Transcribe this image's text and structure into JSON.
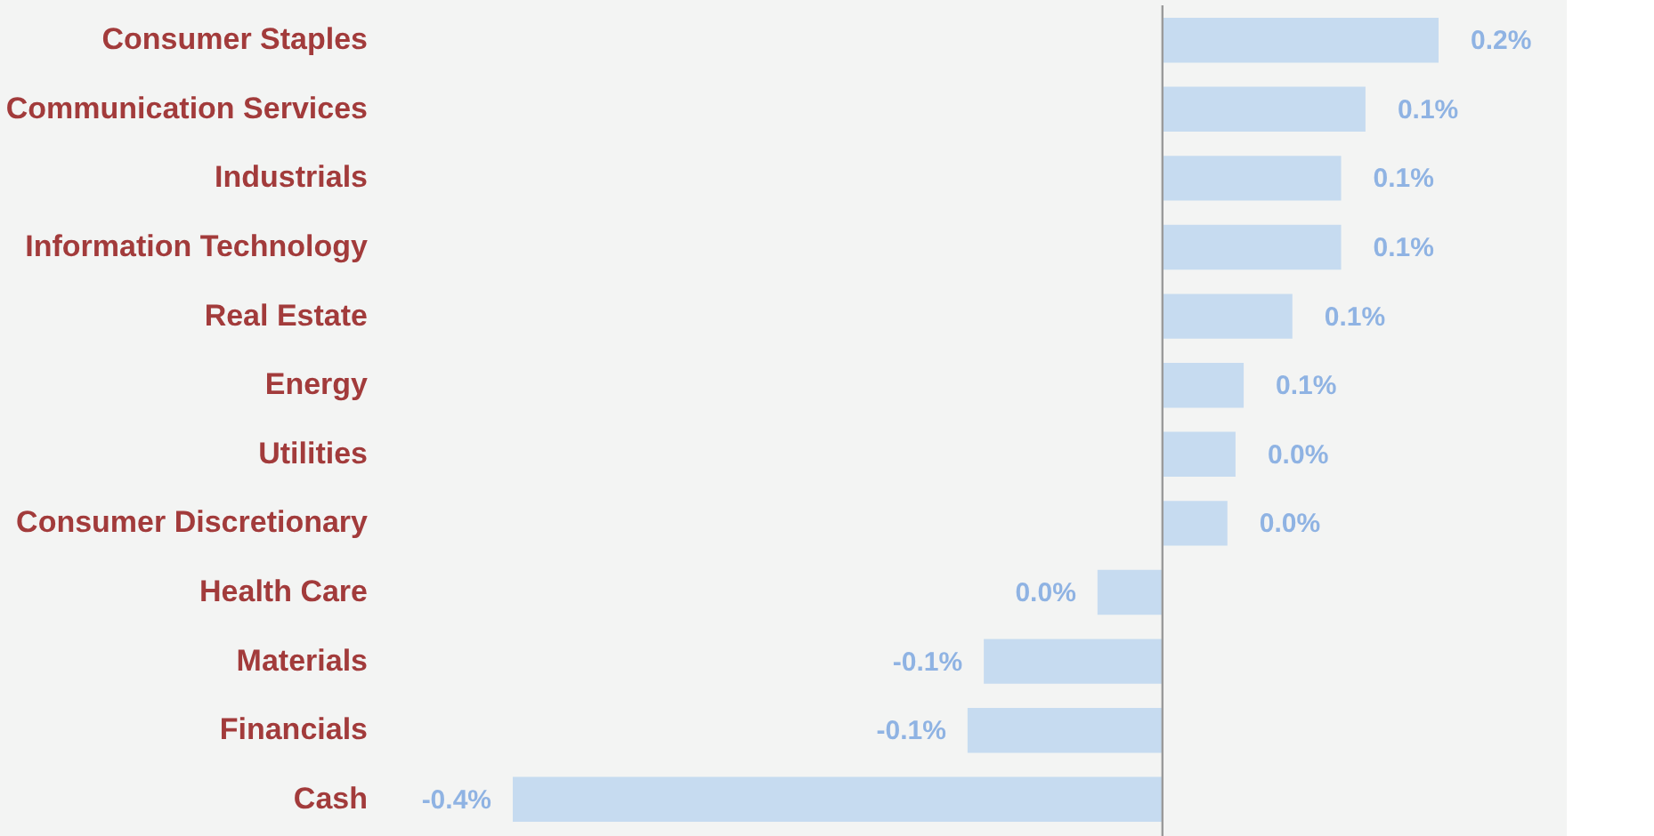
{
  "chart_data": {
    "type": "bar",
    "orientation": "horizontal",
    "categories": [
      "Consumer Staples",
      "Communication Services",
      "Industrials",
      "Information Technology",
      "Real Estate",
      "Energy",
      "Utilities",
      "Consumer Discretionary",
      "Health Care",
      "Materials",
      "Financials",
      "Cash"
    ],
    "values": [
      0.17,
      0.125,
      0.11,
      0.11,
      0.08,
      0.05,
      0.045,
      0.04,
      -0.04,
      -0.11,
      -0.12,
      -0.4
    ],
    "value_labels": [
      "0.2%",
      "0.1%",
      "0.1%",
      "0.1%",
      "0.1%",
      "0.1%",
      "0.0%",
      "0.0%",
      "0.0%",
      "-0.1%",
      "-0.1%",
      "-0.4%"
    ],
    "color": "#c6dbf0",
    "tick_labels": "y",
    "grid": false
  }
}
